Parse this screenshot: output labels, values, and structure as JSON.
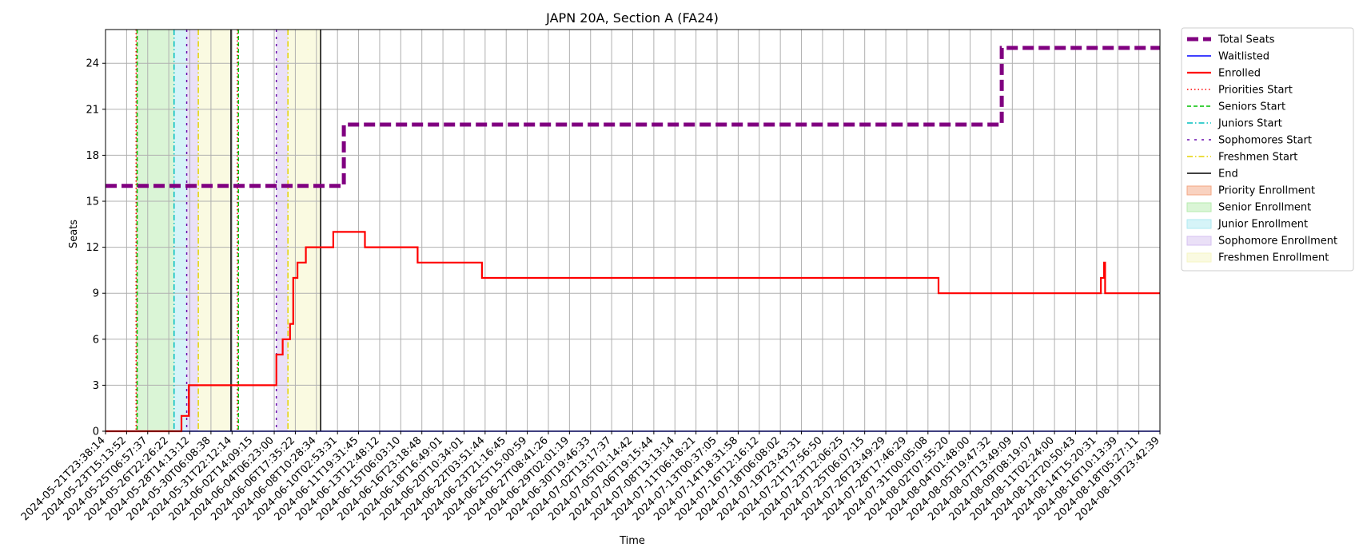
{
  "chart_data": {
    "type": "line",
    "title": "JAPN 20A, Section A (FA24)",
    "xlabel": "Time",
    "ylabel": "Seats",
    "ylim": [
      0,
      26.2
    ],
    "yticks": [
      0,
      3,
      6,
      9,
      12,
      15,
      18,
      21,
      24
    ],
    "grid": true,
    "legend_position": "outside-right-top",
    "x_tick_labels": [
      "2024-05-21T23:38:14",
      "2024-05-23T15:13:52",
      "2024-05-25T06:57:37",
      "2024-05-26T22:26:22",
      "2024-05-28T14:13:12",
      "2024-05-30T06:08:38",
      "2024-05-31T22:12:14",
      "2024-06-02T14:09:15",
      "2024-06-04T06:23:00",
      "2024-06-06T17:35:22",
      "2024-06-08T10:28:34",
      "2024-06-10T02:53:31",
      "2024-06-11T19:31:45",
      "2024-06-13T12:48:12",
      "2024-06-15T06:03:10",
      "2024-06-16T23:18:48",
      "2024-06-18T16:49:01",
      "2024-06-20T10:34:01",
      "2024-06-22T03:51:44",
      "2024-06-23T21:16:45",
      "2024-06-25T15:00:59",
      "2024-06-27T08:41:26",
      "2024-06-29T02:01:19",
      "2024-06-30T19:46:33",
      "2024-07-02T13:17:37",
      "2024-07-05T01:14:42",
      "2024-07-06T19:15:44",
      "2024-07-08T13:13:14",
      "2024-07-11T06:18:21",
      "2024-07-13T00:37:05",
      "2024-07-14T18:31:58",
      "2024-07-16T12:16:12",
      "2024-07-18T06:08:02",
      "2024-07-19T23:43:31",
      "2024-07-21T17:56:50",
      "2024-07-23T12:06:25",
      "2024-07-25T06:07:15",
      "2024-07-26T23:49:29",
      "2024-07-28T17:46:29",
      "2024-07-31T00:05:08",
      "2024-08-02T07:55:20",
      "2024-08-04T01:48:00",
      "2024-08-05T19:47:32",
      "2024-08-07T13:49:09",
      "2024-08-09T08:19:07",
      "2024-08-11T02:24:00",
      "2024-08-12T20:50:43",
      "2024-08-14T15:20:31",
      "2024-08-16T10:13:39",
      "2024-08-18T05:27:11",
      "2024-08-19T23:42:39"
    ],
    "series": [
      {
        "name": "Total Seats",
        "color": "#800080",
        "style": "dashed-thick",
        "points": [
          [
            0,
            16
          ],
          [
            11.3,
            16
          ],
          [
            11.3,
            20
          ],
          [
            42.5,
            20
          ],
          [
            42.5,
            25
          ],
          [
            50,
            25
          ]
        ]
      },
      {
        "name": "Waitlisted",
        "color": "#0000ff",
        "style": "solid",
        "points": [
          [
            0,
            0
          ],
          [
            50,
            0
          ]
        ]
      },
      {
        "name": "Enrolled",
        "color": "#ff0000",
        "style": "solid-thick",
        "points": [
          [
            0,
            0
          ],
          [
            3.6,
            0
          ],
          [
            3.6,
            1
          ],
          [
            3.95,
            1
          ],
          [
            3.95,
            3
          ],
          [
            8.1,
            3
          ],
          [
            8.1,
            5
          ],
          [
            8.4,
            5
          ],
          [
            8.4,
            6
          ],
          [
            8.75,
            6
          ],
          [
            8.75,
            7
          ],
          [
            8.9,
            7
          ],
          [
            8.9,
            10
          ],
          [
            9.1,
            10
          ],
          [
            9.1,
            11
          ],
          [
            9.5,
            11
          ],
          [
            9.5,
            12
          ],
          [
            10.8,
            12
          ],
          [
            10.8,
            13
          ],
          [
            12.3,
            13
          ],
          [
            12.3,
            12
          ],
          [
            14.8,
            12
          ],
          [
            14.8,
            11
          ],
          [
            17.85,
            11
          ],
          [
            17.85,
            10
          ],
          [
            39.5,
            10
          ],
          [
            39.5,
            9
          ],
          [
            47.2,
            9
          ],
          [
            47.2,
            10
          ],
          [
            47.35,
            10
          ],
          [
            47.35,
            11
          ],
          [
            47.4,
            11
          ],
          [
            47.4,
            9
          ],
          [
            50,
            9
          ]
        ]
      }
    ],
    "vlines": [
      {
        "name": "Priorities Start",
        "x": 1.45,
        "color": "#ff0000",
        "style": "dotted"
      },
      {
        "name": "Seniors Start",
        "x": 1.5,
        "color": "#00c000",
        "style": "dashed"
      },
      {
        "name": "Juniors Start",
        "x": 3.25,
        "color": "#00bfbf",
        "style": "dashdot"
      },
      {
        "name": "Sophomores Start",
        "x": 3.85,
        "color": "#6a0dad",
        "style": "densedash"
      },
      {
        "name": "Freshmen Start",
        "x": 4.4,
        "color": "#e5d300",
        "style": "dashdot"
      },
      {
        "name": "End",
        "x": 5.95,
        "color": "#000000",
        "style": "solid"
      },
      {
        "name": "Priorities Start",
        "x": 6.25,
        "color": "#ff0000",
        "style": "dotted"
      },
      {
        "name": "Seniors Start",
        "x": 6.3,
        "color": "#00c000",
        "style": "dashed"
      },
      {
        "name": "Sophomores Start",
        "x": 8.1,
        "color": "#6a0dad",
        "style": "densedash"
      },
      {
        "name": "Freshmen Start",
        "x": 8.65,
        "color": "#e5d300",
        "style": "dashdot"
      },
      {
        "name": "End",
        "x": 10.2,
        "color": "#000000",
        "style": "solid"
      }
    ],
    "spans": [
      {
        "name": "Priority Enrollment",
        "x0": 1.45,
        "x1": 1.5,
        "color": "#f4a582"
      },
      {
        "name": "Senior Enrollment",
        "x0": 1.5,
        "x1": 3.25,
        "color": "#b5ebad"
      },
      {
        "name": "Junior Enrollment",
        "x0": 3.25,
        "x1": 3.85,
        "color": "#aeeaf2"
      },
      {
        "name": "Sophomore Enrollment",
        "x0": 3.85,
        "x1": 4.4,
        "color": "#d6c1f0"
      },
      {
        "name": "Freshmen Enrollment",
        "x0": 4.4,
        "x1": 5.95,
        "color": "#f6f6c4"
      },
      {
        "name": "Sophomore Enrollment",
        "x0": 8.1,
        "x1": 8.65,
        "color": "#d6c1f0"
      },
      {
        "name": "Freshmen Enrollment",
        "x0": 8.65,
        "x1": 10.2,
        "color": "#f6f6c4"
      }
    ],
    "legend": [
      {
        "label": "Total Seats",
        "kind": "line",
        "color": "#800080",
        "style": "dashed-thick"
      },
      {
        "label": "Waitlisted",
        "kind": "line",
        "color": "#0000ff",
        "style": "solid"
      },
      {
        "label": "Enrolled",
        "kind": "line",
        "color": "#ff0000",
        "style": "solid-thick"
      },
      {
        "label": "Priorities Start",
        "kind": "line",
        "color": "#ff0000",
        "style": "dotted"
      },
      {
        "label": "Seniors Start",
        "kind": "line",
        "color": "#00c000",
        "style": "dashed"
      },
      {
        "label": "Juniors Start",
        "kind": "line",
        "color": "#00bfbf",
        "style": "dashdot"
      },
      {
        "label": "Sophomores Start",
        "kind": "line",
        "color": "#6a0dad",
        "style": "densedash"
      },
      {
        "label": "Freshmen Start",
        "kind": "line",
        "color": "#e5d300",
        "style": "dashdot"
      },
      {
        "label": "End",
        "kind": "line",
        "color": "#000000",
        "style": "solid"
      },
      {
        "label": "Priority Enrollment",
        "kind": "patch",
        "color": "#f4a582"
      },
      {
        "label": "Senior Enrollment",
        "kind": "patch",
        "color": "#b5ebad"
      },
      {
        "label": "Junior Enrollment",
        "kind": "patch",
        "color": "#aeeaf2"
      },
      {
        "label": "Sophomore Enrollment",
        "kind": "patch",
        "color": "#d6c1f0"
      },
      {
        "label": "Freshmen Enrollment",
        "kind": "patch",
        "color": "#f6f6c4"
      }
    ]
  }
}
